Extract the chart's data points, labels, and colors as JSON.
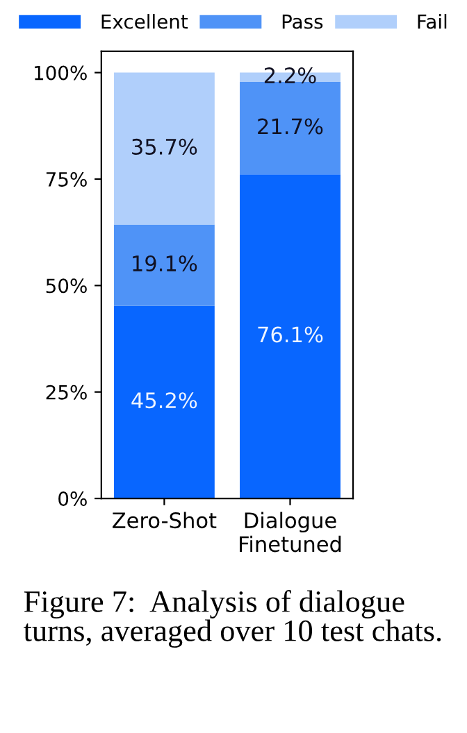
{
  "chart_data": {
    "type": "bar",
    "stacked": true,
    "categories": [
      "Zero-Shot",
      "Dialogue\nFinetuned"
    ],
    "series": [
      {
        "name": "Excellent",
        "color": "#0866ff",
        "values": [
          45.2,
          76.1
        ],
        "value_labels": [
          "45.2%",
          "76.1%"
        ]
      },
      {
        "name": "Pass",
        "color": "#4f93f7",
        "values": [
          19.1,
          21.7
        ],
        "value_labels": [
          "19.1%",
          "21.7%"
        ]
      },
      {
        "name": "Fail",
        "color": "#b0cffb",
        "values": [
          35.7,
          2.2
        ],
        "value_labels": [
          "35.7%",
          "2.2%"
        ]
      }
    ],
    "ylim": [
      0,
      105
    ],
    "yticks": [
      {
        "value": 0,
        "label": "0%"
      },
      {
        "value": 25,
        "label": "25%"
      },
      {
        "value": 50,
        "label": "50%"
      },
      {
        "value": 75,
        "label": "75%"
      },
      {
        "value": 100,
        "label": "100%"
      }
    ],
    "legend": "top",
    "grid": false,
    "annotations": [
      "Figure 7:  Analysis of dialogue turns, averaged over 10 test chats."
    ]
  }
}
